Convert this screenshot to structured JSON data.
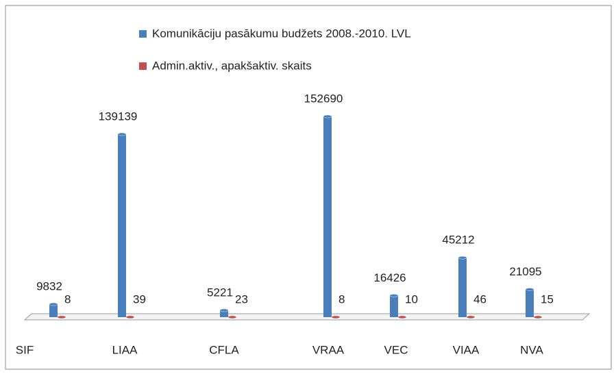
{
  "chart_data": {
    "type": "bar",
    "categories": [
      "SIF",
      "LIAA",
      "CFLA",
      "VRAA",
      "VEC",
      "VIAA",
      "NVA"
    ],
    "series": [
      {
        "name": "Komunikāciju pasākumu budžets 2008.-2010. LVL",
        "color": "#4a7ebb",
        "values": [
          9832,
          139139,
          5221,
          152690,
          16426,
          45212,
          21095
        ]
      },
      {
        "name": "Admin.aktiv., apakšaktiv. skaits",
        "color": "#c0504d",
        "values": [
          8,
          39,
          23,
          8,
          10,
          46,
          15
        ]
      }
    ],
    "legend": "top"
  }
}
